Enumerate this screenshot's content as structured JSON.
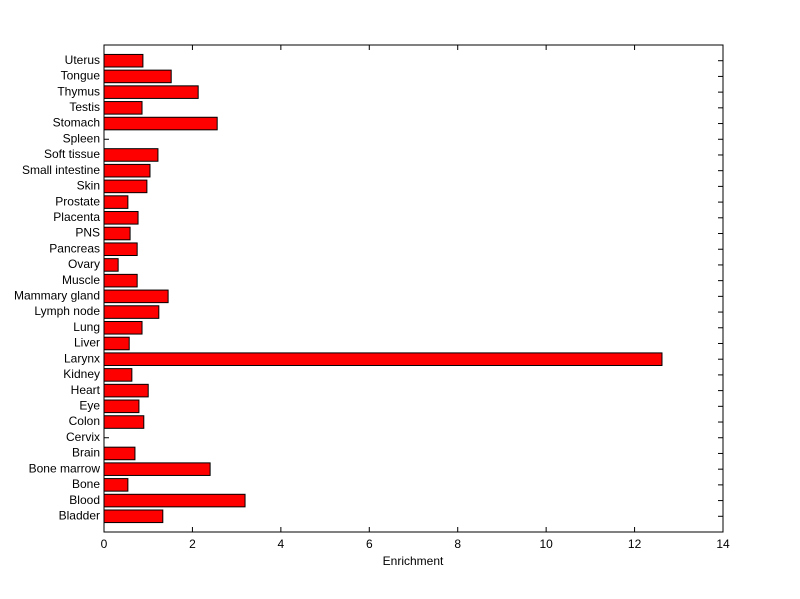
{
  "chart_data": {
    "type": "barh",
    "xlabel": "Enrichment",
    "categories": [
      "Bladder",
      "Blood",
      "Bone",
      "Bone marrow",
      "Brain",
      "Cervix",
      "Colon",
      "Eye",
      "Heart",
      "Kidney",
      "Larynx",
      "Liver",
      "Lung",
      "Lymph node",
      "Mammary gland",
      "Muscle",
      "Ovary",
      "Pancreas",
      "PNS",
      "Placenta",
      "Prostate",
      "Skin",
      "Small intestine",
      "Soft tissue",
      "Spleen",
      "Stomach",
      "Testis",
      "Thymus",
      "Tongue",
      "Uterus"
    ],
    "values": [
      1.33,
      3.19,
      0.54,
      2.4,
      0.7,
      0,
      0.9,
      0.79,
      1.0,
      0.63,
      12.62,
      0.57,
      0.86,
      1.24,
      1.45,
      0.75,
      0.32,
      0.75,
      0.59,
      0.77,
      0.54,
      0.97,
      1.04,
      1.22,
      0,
      2.56,
      0.86,
      2.13,
      1.52,
      0.88
    ],
    "color": "#ff0000",
    "xlim": [
      0,
      14
    ],
    "xticks": [
      0,
      2,
      4,
      6,
      8,
      10,
      12,
      14
    ]
  }
}
